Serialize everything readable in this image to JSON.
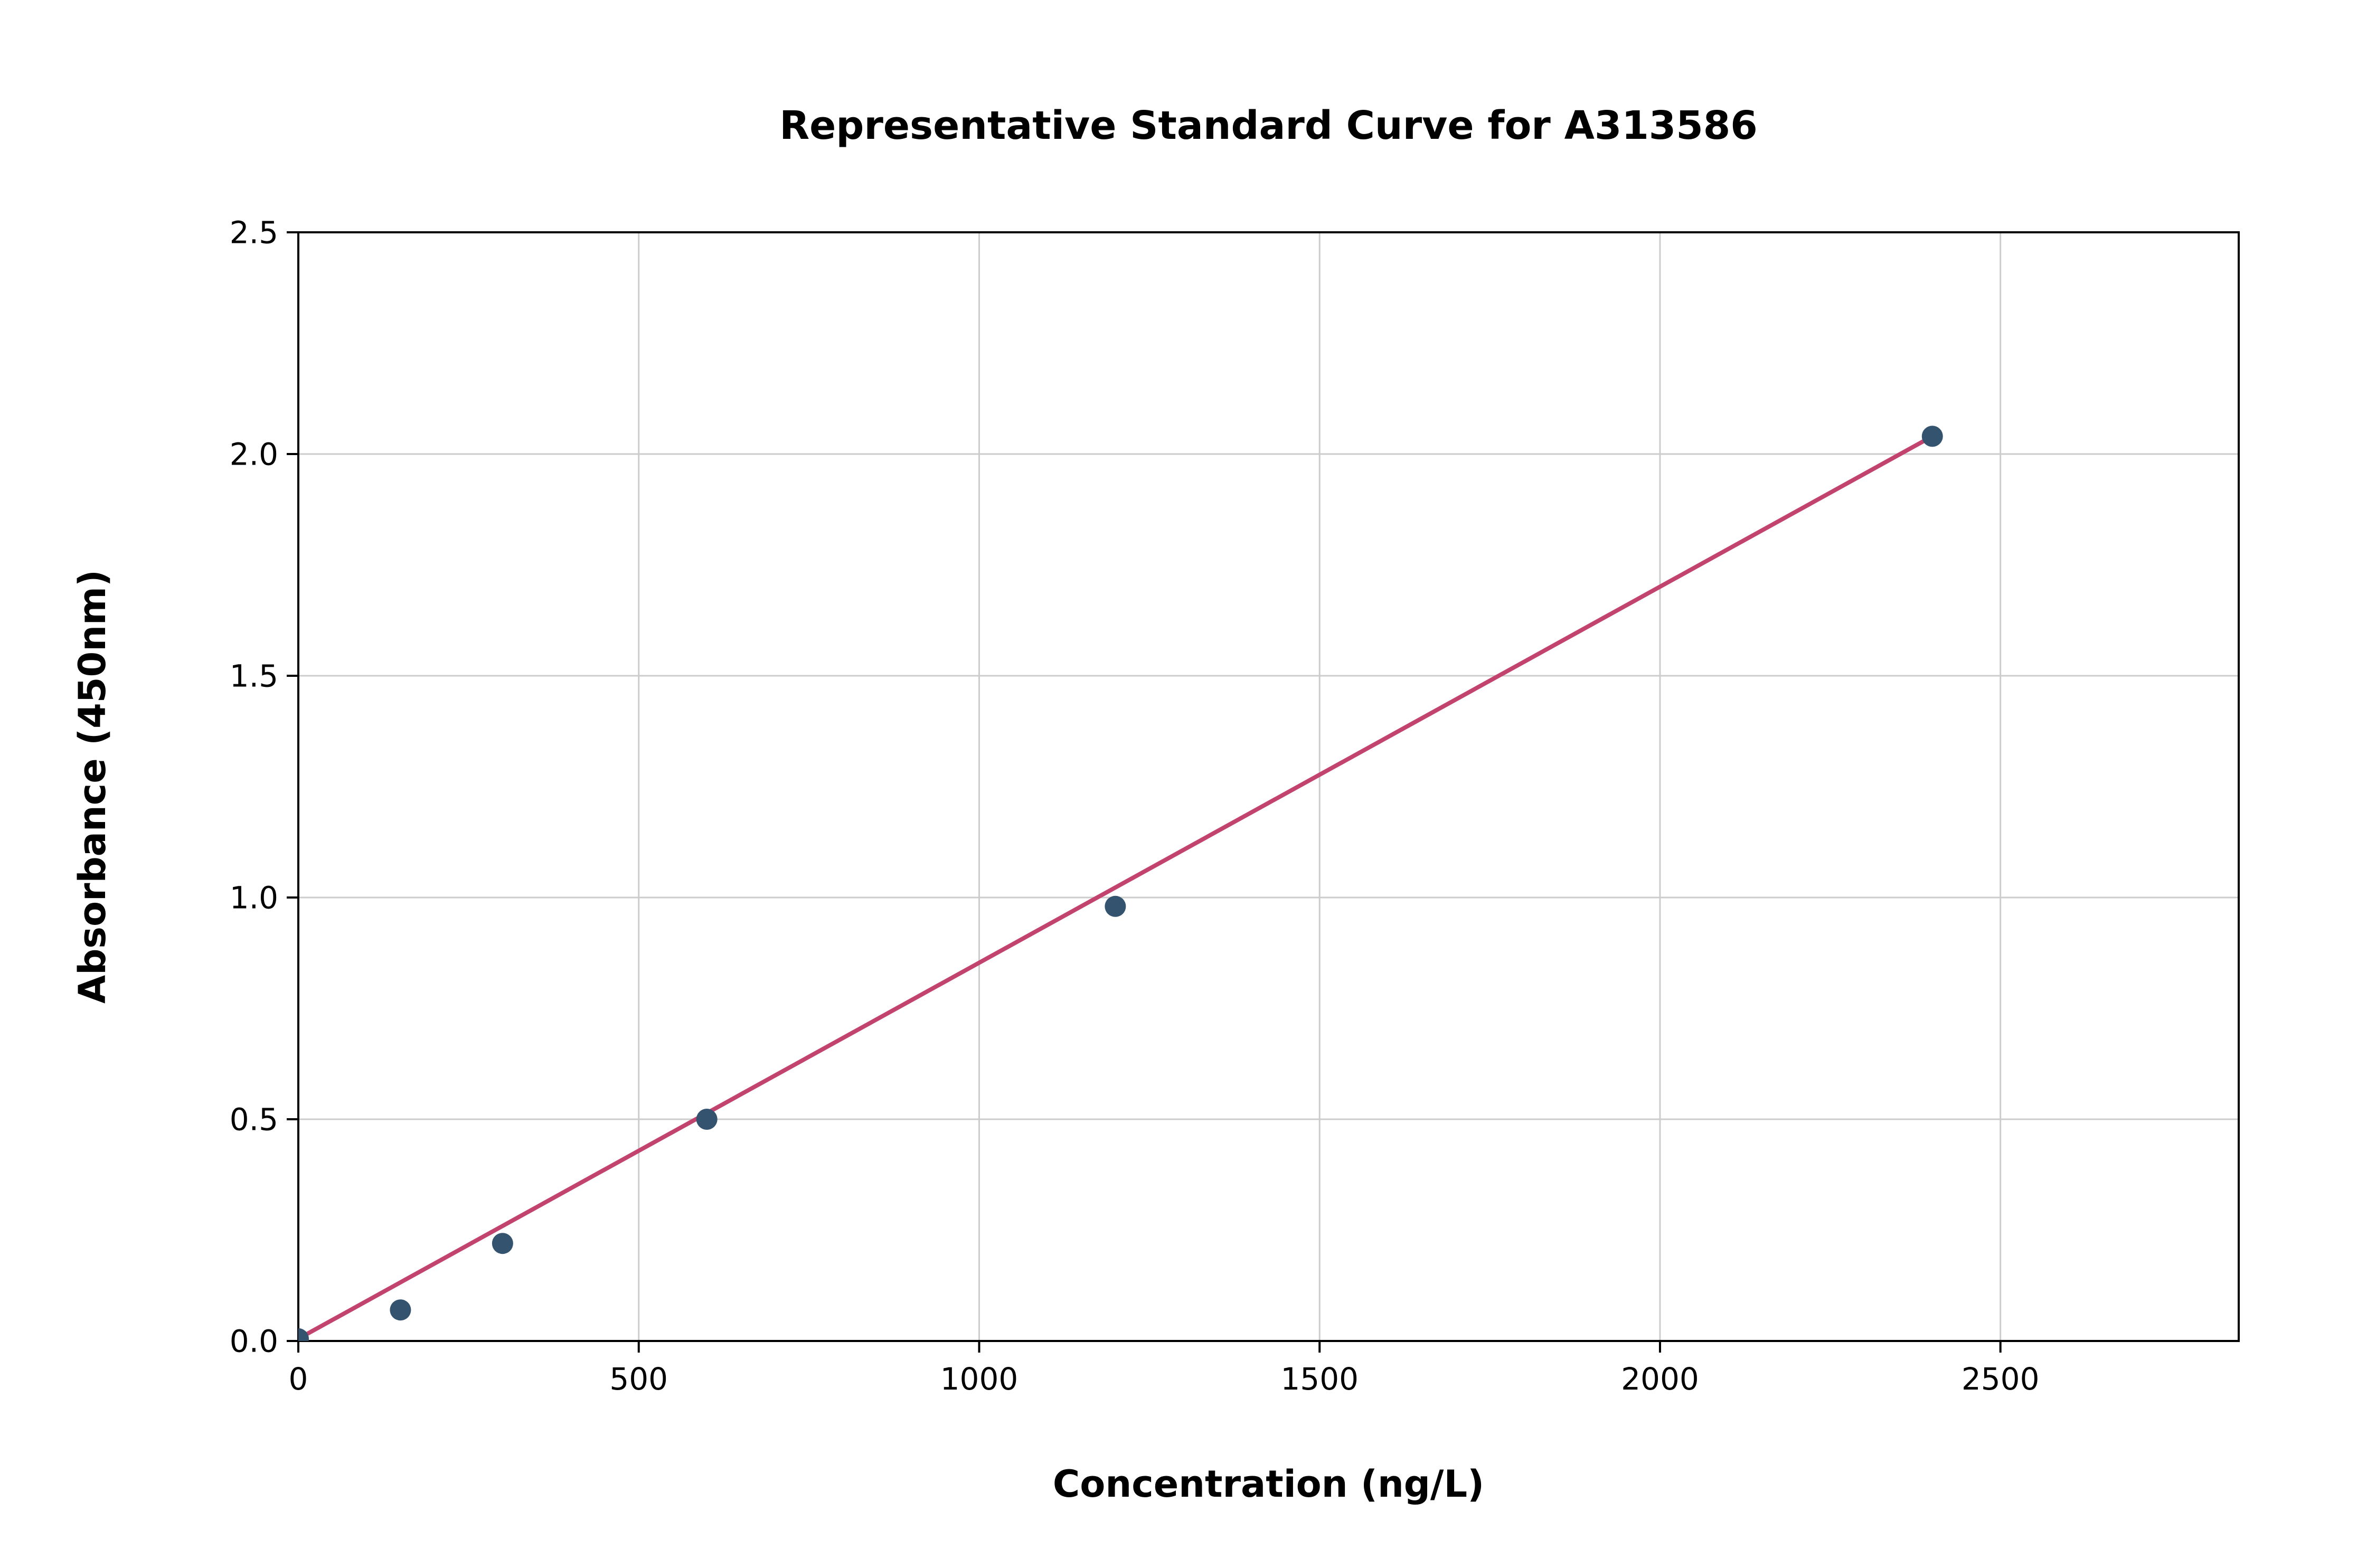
{
  "chart_data": {
    "type": "scatter",
    "title": "Representative Standard Curve for A313586",
    "xlabel": "Concentration (ng/L)",
    "ylabel": "Absorbance (450nm)",
    "xlim": [
      0,
      2850
    ],
    "ylim": [
      0,
      2.5
    ],
    "x_ticks": [
      0,
      500,
      1000,
      1500,
      2000,
      2500
    ],
    "x_tick_labels": [
      "0",
      "500",
      "1000",
      "1500",
      "2000",
      "2500"
    ],
    "y_ticks": [
      0,
      0.5,
      1.0,
      1.5,
      2.0,
      2.5
    ],
    "y_tick_labels": [
      "0.0",
      "0.5",
      "1.0",
      "1.5",
      "2.0",
      "2.5"
    ],
    "grid": true,
    "legend": "none",
    "points": [
      {
        "x": 0,
        "y": 0.005
      },
      {
        "x": 150,
        "y": 0.07
      },
      {
        "x": 300,
        "y": 0.22
      },
      {
        "x": 600,
        "y": 0.5
      },
      {
        "x": 1200,
        "y": 0.98
      },
      {
        "x": 2400,
        "y": 2.04
      }
    ],
    "trendline": {
      "x1": 0,
      "y1": 0.005,
      "x2": 2400,
      "y2": 2.04
    },
    "colors": {
      "point": "#34536e",
      "line": "#c2446e",
      "grid": "#cccccc",
      "frame": "#000000",
      "text": "#000000"
    }
  }
}
